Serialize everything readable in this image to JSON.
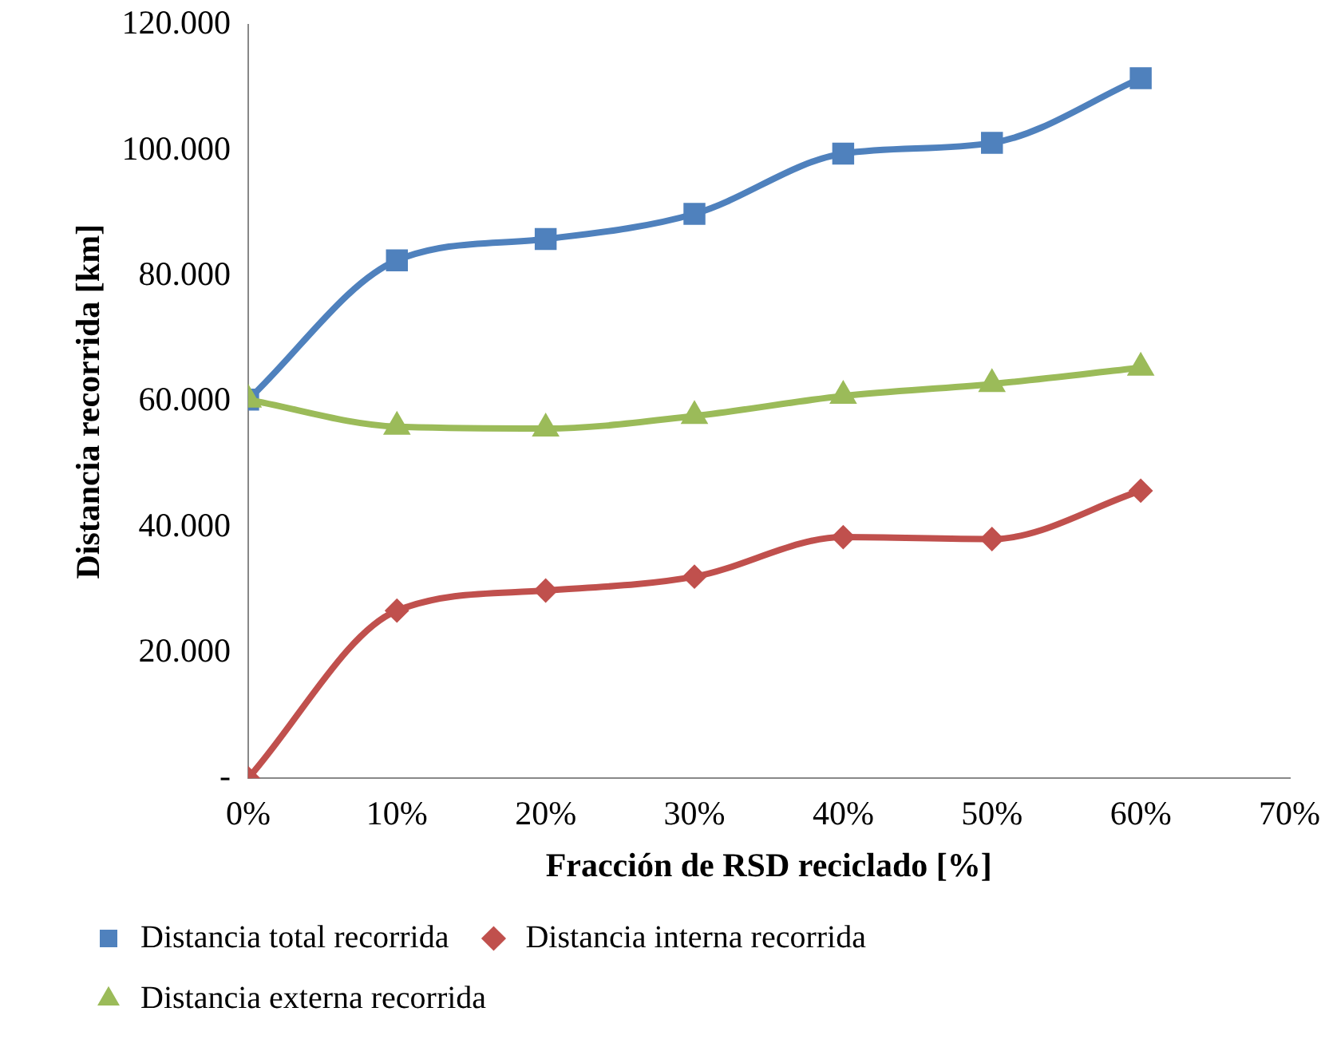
{
  "chart_data": {
    "type": "line",
    "xlabel": "Fracción de RSD reciclado [%]",
    "ylabel": "Distancia recorrida [km]",
    "x": [
      0,
      10,
      20,
      30,
      40,
      50,
      60
    ],
    "xlim": [
      0,
      70
    ],
    "xticks": [
      {
        "value": 0,
        "label": "0%"
      },
      {
        "value": 10,
        "label": "10%"
      },
      {
        "value": 20,
        "label": "20%"
      },
      {
        "value": 30,
        "label": "30%"
      },
      {
        "value": 40,
        "label": "40%"
      },
      {
        "value": 50,
        "label": "50%"
      },
      {
        "value": 60,
        "label": "60%"
      },
      {
        "value": 70,
        "label": "70%"
      }
    ],
    "ylim": [
      0,
      120000
    ],
    "yticks": [
      {
        "value": 0,
        "label": "-"
      },
      {
        "value": 20000,
        "label": "20.000"
      },
      {
        "value": 40000,
        "label": "40.000"
      },
      {
        "value": 60000,
        "label": "60.000"
      },
      {
        "value": 80000,
        "label": "80.000"
      },
      {
        "value": 100000,
        "label": "100.000"
      },
      {
        "value": 120000,
        "label": "120.000"
      }
    ],
    "series": [
      {
        "name": "Distancia total recorrida",
        "color": "#4f81bd",
        "marker": "square",
        "values": [
          60300,
          82500,
          85900,
          89900,
          99500,
          101200,
          111500
        ]
      },
      {
        "name": "Distancia interna recorrida",
        "color": "#c0504d",
        "marker": "diamond",
        "values": [
          0,
          26700,
          29900,
          32100,
          38400,
          38100,
          45800
        ]
      },
      {
        "name": "Distancia externa recorrida",
        "color": "#9bbb59",
        "marker": "triangle",
        "values": [
          60300,
          56000,
          55700,
          57700,
          60900,
          62800,
          65400
        ]
      }
    ],
    "grid": false,
    "legend": "bottom",
    "line_style": "solid"
  }
}
